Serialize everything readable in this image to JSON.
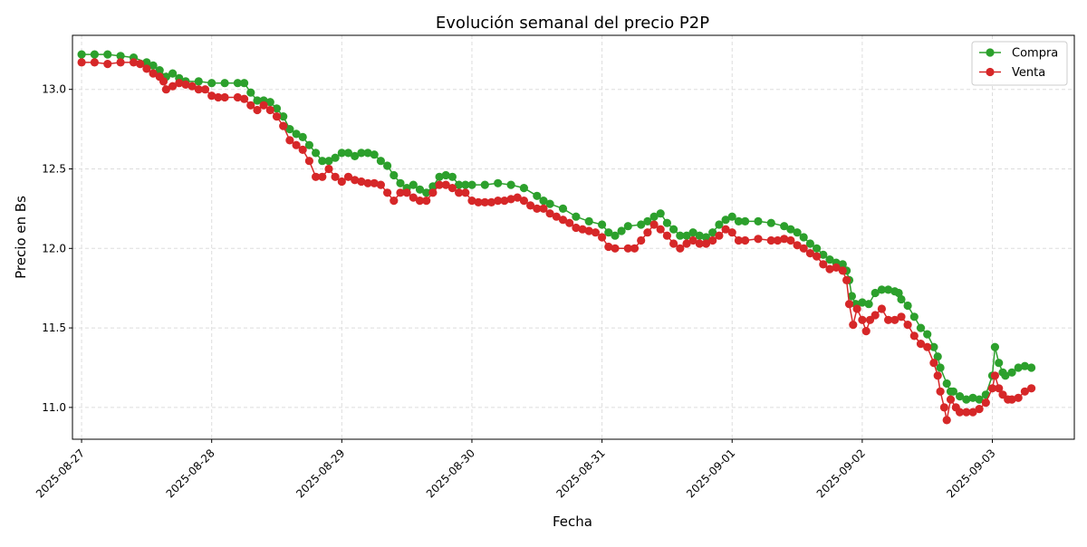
{
  "chart_data": {
    "type": "line",
    "title": "Evolución semanal del precio P2P",
    "xlabel": "Fecha",
    "ylabel": "Precio en Bs",
    "x_ticks": [
      "2025-08-27",
      "2025-08-28",
      "2025-08-29",
      "2025-08-30",
      "2025-08-31",
      "2025-09-01",
      "2025-09-02",
      "2025-09-03"
    ],
    "y_ticks": [
      11.0,
      11.5,
      12.0,
      12.5,
      13.0
    ],
    "xlim": [
      -0.07,
      7.63
    ],
    "ylim": [
      10.8,
      13.34
    ],
    "grid": true,
    "legend": "top-right",
    "marker": "circle",
    "series": [
      {
        "name": "Compra",
        "color": "#2ca02c",
        "points": [
          [
            0.0,
            13.22
          ],
          [
            0.1,
            13.22
          ],
          [
            0.2,
            13.22
          ],
          [
            0.3,
            13.21
          ],
          [
            0.4,
            13.2
          ],
          [
            0.5,
            13.17
          ],
          [
            0.55,
            13.15
          ],
          [
            0.6,
            13.12
          ],
          [
            0.65,
            13.08
          ],
          [
            0.7,
            13.1
          ],
          [
            0.75,
            13.07
          ],
          [
            0.8,
            13.05
          ],
          [
            0.9,
            13.05
          ],
          [
            1.0,
            13.04
          ],
          [
            1.1,
            13.04
          ],
          [
            1.2,
            13.04
          ],
          [
            1.25,
            13.04
          ],
          [
            1.3,
            12.98
          ],
          [
            1.35,
            12.93
          ],
          [
            1.4,
            12.93
          ],
          [
            1.45,
            12.92
          ],
          [
            1.5,
            12.88
          ],
          [
            1.55,
            12.83
          ],
          [
            1.6,
            12.75
          ],
          [
            1.65,
            12.72
          ],
          [
            1.7,
            12.7
          ],
          [
            1.75,
            12.65
          ],
          [
            1.8,
            12.6
          ],
          [
            1.85,
            12.55
          ],
          [
            1.9,
            12.55
          ],
          [
            1.95,
            12.57
          ],
          [
            2.0,
            12.6
          ],
          [
            2.05,
            12.6
          ],
          [
            2.1,
            12.58
          ],
          [
            2.15,
            12.6
          ],
          [
            2.2,
            12.6
          ],
          [
            2.25,
            12.59
          ],
          [
            2.3,
            12.55
          ],
          [
            2.35,
            12.52
          ],
          [
            2.4,
            12.46
          ],
          [
            2.45,
            12.41
          ],
          [
            2.5,
            12.38
          ],
          [
            2.55,
            12.4
          ],
          [
            2.6,
            12.37
          ],
          [
            2.65,
            12.35
          ],
          [
            2.7,
            12.39
          ],
          [
            2.75,
            12.45
          ],
          [
            2.8,
            12.46
          ],
          [
            2.85,
            12.45
          ],
          [
            2.9,
            12.4
          ],
          [
            2.95,
            12.4
          ],
          [
            3.0,
            12.4
          ],
          [
            3.1,
            12.4
          ],
          [
            3.2,
            12.41
          ],
          [
            3.3,
            12.4
          ],
          [
            3.4,
            12.38
          ],
          [
            3.5,
            12.33
          ],
          [
            3.55,
            12.3
          ],
          [
            3.6,
            12.28
          ],
          [
            3.7,
            12.25
          ],
          [
            3.8,
            12.2
          ],
          [
            3.9,
            12.17
          ],
          [
            4.0,
            12.15
          ],
          [
            4.05,
            12.1
          ],
          [
            4.1,
            12.08
          ],
          [
            4.15,
            12.11
          ],
          [
            4.2,
            12.14
          ],
          [
            4.3,
            12.15
          ],
          [
            4.35,
            12.17
          ],
          [
            4.4,
            12.2
          ],
          [
            4.45,
            12.22
          ],
          [
            4.5,
            12.16
          ],
          [
            4.55,
            12.12
          ],
          [
            4.6,
            12.08
          ],
          [
            4.65,
            12.08
          ],
          [
            4.7,
            12.1
          ],
          [
            4.75,
            12.08
          ],
          [
            4.8,
            12.07
          ],
          [
            4.85,
            12.1
          ],
          [
            4.9,
            12.15
          ],
          [
            4.95,
            12.18
          ],
          [
            5.0,
            12.2
          ],
          [
            5.05,
            12.17
          ],
          [
            5.1,
            12.17
          ],
          [
            5.2,
            12.17
          ],
          [
            5.3,
            12.16
          ],
          [
            5.4,
            12.14
          ],
          [
            5.45,
            12.12
          ],
          [
            5.5,
            12.1
          ],
          [
            5.55,
            12.07
          ],
          [
            5.6,
            12.03
          ],
          [
            5.65,
            12.0
          ],
          [
            5.7,
            11.96
          ],
          [
            5.75,
            11.93
          ],
          [
            5.8,
            11.91
          ],
          [
            5.85,
            11.9
          ],
          [
            5.88,
            11.86
          ],
          [
            5.9,
            11.8
          ],
          [
            5.92,
            11.7
          ],
          [
            5.95,
            11.65
          ],
          [
            6.0,
            11.66
          ],
          [
            6.05,
            11.65
          ],
          [
            6.1,
            11.72
          ],
          [
            6.15,
            11.74
          ],
          [
            6.2,
            11.74
          ],
          [
            6.25,
            11.73
          ],
          [
            6.28,
            11.72
          ],
          [
            6.3,
            11.68
          ],
          [
            6.35,
            11.64
          ],
          [
            6.4,
            11.57
          ],
          [
            6.45,
            11.5
          ],
          [
            6.5,
            11.46
          ],
          [
            6.55,
            11.38
          ],
          [
            6.58,
            11.32
          ],
          [
            6.6,
            11.25
          ],
          [
            6.65,
            11.15
          ],
          [
            6.68,
            11.1
          ],
          [
            6.7,
            11.1
          ],
          [
            6.75,
            11.07
          ],
          [
            6.8,
            11.05
          ],
          [
            6.85,
            11.06
          ],
          [
            6.9,
            11.05
          ],
          [
            6.95,
            11.08
          ],
          [
            7.0,
            11.2
          ],
          [
            7.02,
            11.38
          ],
          [
            7.05,
            11.28
          ],
          [
            7.08,
            11.22
          ],
          [
            7.1,
            11.2
          ],
          [
            7.15,
            11.22
          ],
          [
            7.2,
            11.25
          ],
          [
            7.25,
            11.26
          ],
          [
            7.3,
            11.25
          ]
        ]
      },
      {
        "name": "Venta",
        "color": "#d62728",
        "points": [
          [
            0.0,
            13.17
          ],
          [
            0.1,
            13.17
          ],
          [
            0.2,
            13.16
          ],
          [
            0.3,
            13.17
          ],
          [
            0.4,
            13.17
          ],
          [
            0.45,
            13.16
          ],
          [
            0.5,
            13.13
          ],
          [
            0.55,
            13.1
          ],
          [
            0.6,
            13.08
          ],
          [
            0.63,
            13.05
          ],
          [
            0.65,
            13.0
          ],
          [
            0.7,
            13.02
          ],
          [
            0.75,
            13.04
          ],
          [
            0.8,
            13.03
          ],
          [
            0.85,
            13.02
          ],
          [
            0.9,
            13.0
          ],
          [
            0.95,
            13.0
          ],
          [
            1.0,
            12.96
          ],
          [
            1.05,
            12.95
          ],
          [
            1.1,
            12.95
          ],
          [
            1.2,
            12.95
          ],
          [
            1.25,
            12.94
          ],
          [
            1.3,
            12.9
          ],
          [
            1.35,
            12.87
          ],
          [
            1.4,
            12.9
          ],
          [
            1.45,
            12.87
          ],
          [
            1.5,
            12.83
          ],
          [
            1.55,
            12.77
          ],
          [
            1.6,
            12.68
          ],
          [
            1.65,
            12.65
          ],
          [
            1.7,
            12.62
          ],
          [
            1.75,
            12.55
          ],
          [
            1.8,
            12.45
          ],
          [
            1.85,
            12.45
          ],
          [
            1.9,
            12.5
          ],
          [
            1.95,
            12.45
          ],
          [
            2.0,
            12.42
          ],
          [
            2.05,
            12.45
          ],
          [
            2.1,
            12.43
          ],
          [
            2.15,
            12.42
          ],
          [
            2.2,
            12.41
          ],
          [
            2.25,
            12.41
          ],
          [
            2.3,
            12.4
          ],
          [
            2.35,
            12.35
          ],
          [
            2.4,
            12.3
          ],
          [
            2.45,
            12.35
          ],
          [
            2.5,
            12.35
          ],
          [
            2.55,
            12.32
          ],
          [
            2.6,
            12.3
          ],
          [
            2.65,
            12.3
          ],
          [
            2.7,
            12.35
          ],
          [
            2.75,
            12.4
          ],
          [
            2.8,
            12.4
          ],
          [
            2.85,
            12.38
          ],
          [
            2.9,
            12.35
          ],
          [
            2.95,
            12.35
          ],
          [
            3.0,
            12.3
          ],
          [
            3.05,
            12.29
          ],
          [
            3.1,
            12.29
          ],
          [
            3.15,
            12.29
          ],
          [
            3.2,
            12.3
          ],
          [
            3.25,
            12.3
          ],
          [
            3.3,
            12.31
          ],
          [
            3.35,
            12.32
          ],
          [
            3.4,
            12.3
          ],
          [
            3.45,
            12.27
          ],
          [
            3.5,
            12.25
          ],
          [
            3.55,
            12.25
          ],
          [
            3.6,
            12.22
          ],
          [
            3.65,
            12.2
          ],
          [
            3.7,
            12.18
          ],
          [
            3.75,
            12.16
          ],
          [
            3.8,
            12.13
          ],
          [
            3.85,
            12.12
          ],
          [
            3.9,
            12.11
          ],
          [
            3.95,
            12.1
          ],
          [
            4.0,
            12.07
          ],
          [
            4.05,
            12.01
          ],
          [
            4.1,
            12.0
          ],
          [
            4.2,
            12.0
          ],
          [
            4.25,
            12.0
          ],
          [
            4.3,
            12.05
          ],
          [
            4.35,
            12.1
          ],
          [
            4.4,
            12.15
          ],
          [
            4.45,
            12.12
          ],
          [
            4.5,
            12.08
          ],
          [
            4.55,
            12.03
          ],
          [
            4.6,
            12.0
          ],
          [
            4.65,
            12.03
          ],
          [
            4.7,
            12.05
          ],
          [
            4.75,
            12.03
          ],
          [
            4.8,
            12.03
          ],
          [
            4.85,
            12.05
          ],
          [
            4.9,
            12.08
          ],
          [
            4.95,
            12.12
          ],
          [
            5.0,
            12.1
          ],
          [
            5.05,
            12.05
          ],
          [
            5.1,
            12.05
          ],
          [
            5.2,
            12.06
          ],
          [
            5.3,
            12.05
          ],
          [
            5.35,
            12.05
          ],
          [
            5.4,
            12.06
          ],
          [
            5.45,
            12.05
          ],
          [
            5.5,
            12.02
          ],
          [
            5.55,
            12.0
          ],
          [
            5.6,
            11.97
          ],
          [
            5.65,
            11.95
          ],
          [
            5.7,
            11.9
          ],
          [
            5.75,
            11.87
          ],
          [
            5.8,
            11.88
          ],
          [
            5.85,
            11.86
          ],
          [
            5.88,
            11.8
          ],
          [
            5.9,
            11.65
          ],
          [
            5.93,
            11.52
          ],
          [
            5.96,
            11.62
          ],
          [
            6.0,
            11.55
          ],
          [
            6.03,
            11.48
          ],
          [
            6.06,
            11.55
          ],
          [
            6.1,
            11.58
          ],
          [
            6.15,
            11.62
          ],
          [
            6.2,
            11.55
          ],
          [
            6.25,
            11.55
          ],
          [
            6.3,
            11.57
          ],
          [
            6.35,
            11.52
          ],
          [
            6.4,
            11.45
          ],
          [
            6.45,
            11.4
          ],
          [
            6.5,
            11.38
          ],
          [
            6.55,
            11.28
          ],
          [
            6.58,
            11.2
          ],
          [
            6.6,
            11.1
          ],
          [
            6.63,
            11.0
          ],
          [
            6.65,
            10.92
          ],
          [
            6.68,
            11.05
          ],
          [
            6.72,
            11.0
          ],
          [
            6.75,
            10.97
          ],
          [
            6.8,
            10.97
          ],
          [
            6.85,
            10.97
          ],
          [
            6.9,
            10.99
          ],
          [
            6.95,
            11.03
          ],
          [
            7.0,
            11.12
          ],
          [
            7.02,
            11.2
          ],
          [
            7.05,
            11.12
          ],
          [
            7.08,
            11.08
          ],
          [
            7.12,
            11.05
          ],
          [
            7.15,
            11.05
          ],
          [
            7.2,
            11.06
          ],
          [
            7.25,
            11.1
          ],
          [
            7.3,
            11.12
          ]
        ]
      }
    ]
  }
}
